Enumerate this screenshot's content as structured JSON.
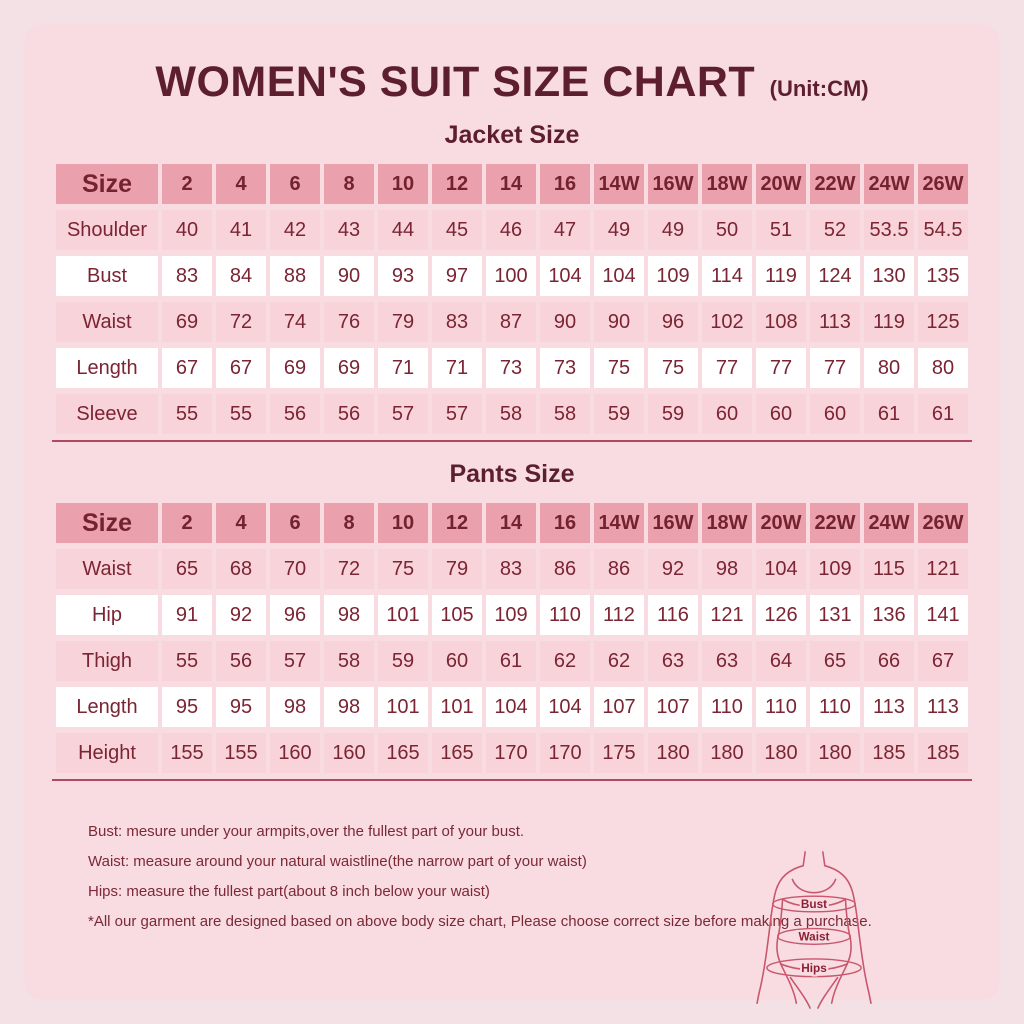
{
  "header": {
    "title": "WOMEN'S SUIT SIZE CHART",
    "unit": "(Unit:CM)"
  },
  "chart_data": [
    {
      "type": "table",
      "section_heading": "Jacket Size",
      "categories": [
        "Size",
        "2",
        "4",
        "6",
        "8",
        "10",
        "12",
        "14",
        "16",
        "14W",
        "16W",
        "18W",
        "20W",
        "22W",
        "24W",
        "26W"
      ],
      "rows": [
        {
          "label": "Shoulder",
          "values": [
            40,
            41,
            42,
            43,
            44,
            45,
            46,
            47,
            49,
            49,
            50,
            51,
            52,
            53.5,
            54.5
          ]
        },
        {
          "label": "Bust",
          "values": [
            83,
            84,
            88,
            90,
            93,
            97,
            100,
            104,
            104,
            109,
            114,
            119,
            124,
            130,
            135
          ]
        },
        {
          "label": "Waist",
          "values": [
            69,
            72,
            74,
            76,
            79,
            83,
            87,
            90,
            90,
            96,
            102,
            108,
            113,
            119,
            125
          ]
        },
        {
          "label": "Length",
          "values": [
            67,
            67,
            69,
            69,
            71,
            71,
            73,
            73,
            75,
            75,
            77,
            77,
            77,
            80,
            80
          ]
        },
        {
          "label": "Sleeve",
          "values": [
            55,
            55,
            56,
            56,
            57,
            57,
            58,
            58,
            59,
            59,
            60,
            60,
            60,
            61,
            61
          ]
        }
      ]
    },
    {
      "type": "table",
      "section_heading": "Pants Size",
      "categories": [
        "Size",
        "2",
        "4",
        "6",
        "8",
        "10",
        "12",
        "14",
        "16",
        "14W",
        "16W",
        "18W",
        "20W",
        "22W",
        "24W",
        "26W"
      ],
      "rows": [
        {
          "label": "Waist",
          "values": [
            65,
            68,
            70,
            72,
            75,
            79,
            83,
            86,
            86,
            92,
            98,
            104,
            109,
            115,
            121
          ]
        },
        {
          "label": "Hip",
          "values": [
            91,
            92,
            96,
            98,
            101,
            105,
            109,
            110,
            112,
            116,
            121,
            126,
            131,
            136,
            141
          ]
        },
        {
          "label": "Thigh",
          "values": [
            55,
            56,
            57,
            58,
            59,
            60,
            61,
            62,
            62,
            63,
            63,
            64,
            65,
            66,
            67
          ]
        },
        {
          "label": "Length",
          "values": [
            95,
            95,
            98,
            98,
            101,
            101,
            104,
            104,
            107,
            107,
            110,
            110,
            110,
            113,
            113
          ]
        },
        {
          "label": "Height",
          "values": [
            155,
            155,
            160,
            160,
            165,
            165,
            170,
            170,
            175,
            180,
            180,
            180,
            180,
            185,
            185
          ]
        }
      ]
    }
  ],
  "notes": [
    "Bust: mesure under your armpits,over the fullest part of your bust.",
    "Waist: measure around your natural waistline(the narrow part of your waist)",
    "Hips: measure the fullest part(about 8 inch below your waist)",
    "*All our garment are designed based on above body size chart, Please choose correct size before making a purchase."
  ],
  "figure": {
    "labels": {
      "bust": "Bust",
      "waist": "Waist",
      "hips": "Hips"
    }
  },
  "colors": {
    "outer_background": "#f3e1e5",
    "panel_background": "#f8dce2",
    "table_header_bg": "#eba1ad",
    "row_pink_bg": "#f8d3d9",
    "row_white_bg": "#ffffff",
    "title_text": "#5d1f2d",
    "table_text": "#7b2433",
    "table_bottom_rule": "#b04a5e",
    "figure_outline": "#c9566c"
  }
}
